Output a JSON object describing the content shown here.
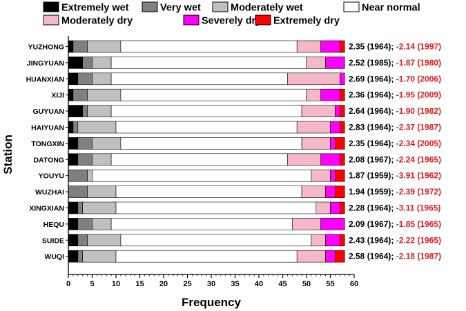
{
  "chart_data": {
    "type": "bar",
    "orientation": "horizontal",
    "stacked": true,
    "xlabel": "Frequency",
    "ylabel": "Station",
    "xlim": [
      0,
      60
    ],
    "xticks": [
      0,
      5,
      10,
      15,
      20,
      25,
      30,
      35,
      40,
      45,
      50,
      55,
      60
    ],
    "xminor_step": 1,
    "grid": false,
    "legend_position": "top",
    "categories": [
      "YUZHONG",
      "JINGYUAN",
      "HUANXIAN",
      "XIJI",
      "GUYUAN",
      "HAIYUAN",
      "TONGXIN",
      "DATONG",
      "YOUYU",
      "WUZHAI",
      "XINGXIAN",
      "HEQU",
      "SUIDE",
      "WUQI"
    ],
    "series": [
      {
        "name": "Extremely wet",
        "color": "#000000",
        "values": [
          1,
          3,
          2,
          1,
          3,
          1,
          2,
          2,
          0,
          0,
          2,
          2,
          2,
          2
        ]
      },
      {
        "name": "Very wet",
        "color": "#808080",
        "values": [
          3,
          2,
          3,
          3,
          1,
          1,
          3,
          3,
          4,
          4,
          1,
          3,
          2,
          1
        ]
      },
      {
        "name": "Moderately wet",
        "color": "#c0c0c0",
        "values": [
          7,
          4,
          4,
          7,
          5,
          8,
          6,
          4,
          1,
          6,
          7,
          4,
          7,
          7
        ]
      },
      {
        "name": "Near normal",
        "color": "#ffffff",
        "values": [
          37,
          41,
          37,
          39,
          40,
          38,
          38,
          37,
          46,
          39,
          42,
          38,
          40,
          38
        ]
      },
      {
        "name": "Moderately dry",
        "color": "#f5b8c6",
        "values": [
          5,
          4,
          11,
          3,
          7,
          7,
          6,
          7,
          4,
          5,
          3,
          6,
          3,
          6
        ]
      },
      {
        "name": "Severely dry",
        "color": "#ff00ff",
        "values": [
          4,
          4,
          1,
          4,
          1,
          2,
          1,
          4,
          1,
          2,
          2,
          5,
          3,
          2
        ]
      },
      {
        "name": "Extremely dry",
        "color": "#ff0000",
        "values": [
          1,
          0,
          0,
          1,
          1,
          1,
          2,
          1,
          2,
          2,
          1,
          0,
          1,
          2
        ]
      }
    ],
    "annotations": [
      {
        "station": "YUZHONG",
        "wet": "2.35 (1964);",
        "dry": "-2.14 (1997)"
      },
      {
        "station": "JINGYUAN",
        "wet": "2.52 (1985);",
        "dry": "-1.87 (1980)"
      },
      {
        "station": "HUANXIAN",
        "wet": "2.69 (1964);",
        "dry": "-1.70 (2006)"
      },
      {
        "station": "XIJI",
        "wet": "2.36 (1964);",
        "dry": "-1.95 (2009)"
      },
      {
        "station": "GUYUAN",
        "wet": "2.64 (1964);",
        "dry": "-1.90 (1982)"
      },
      {
        "station": "HAIYUAN",
        "wet": "2.83 (1964);",
        "dry": "-2.37 (1987)"
      },
      {
        "station": "TONGXIN",
        "wet": "2.35 (1964);",
        "dry": "-2.34 (2005)"
      },
      {
        "station": "DATONG",
        "wet": "2.08 (1967);",
        "dry": "-2.24 (1965)"
      },
      {
        "station": "YOUYU",
        "wet": "1.87 (1959);",
        "dry": "-3.91 (1962)"
      },
      {
        "station": "WUZHAI",
        "wet": "1.94 (1959);",
        "dry": "-2.39 (1972)"
      },
      {
        "station": "XINGXIAN",
        "wet": "2.28 (1964);",
        "dry": "-3.11 (1965)"
      },
      {
        "station": "HEQU",
        "wet": "2.09 (1967);",
        "dry": "-1.85 (1965)"
      },
      {
        "station": "SUIDE",
        "wet": "2.43 (1964);",
        "dry": "-2.22 (1965)"
      },
      {
        "station": "WUQI",
        "wet": "2.58 (1964);",
        "dry": "-2.18 (1987)"
      }
    ],
    "annotation_dry_color": "#e41a1c"
  }
}
